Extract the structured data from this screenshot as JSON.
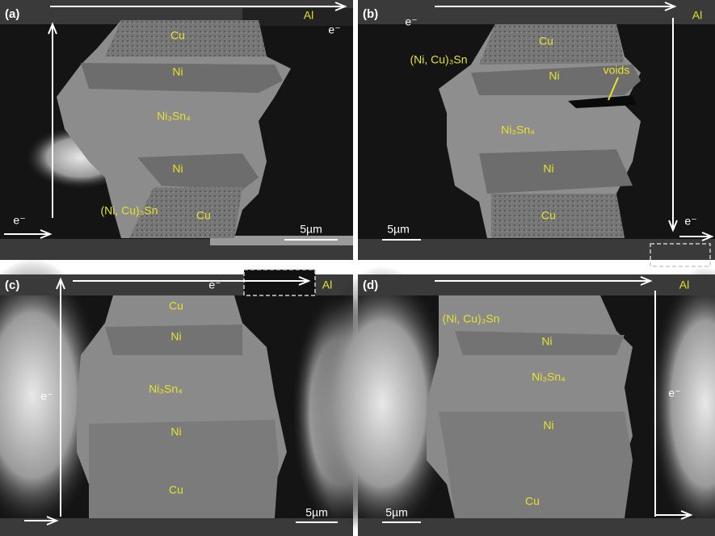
{
  "panels": [
    {
      "label": "(a)",
      "texts": [
        "Al",
        "e⁻",
        "Cu",
        "Ni",
        "Ni₃Sn₄",
        "Ni",
        "(Ni, Cu)₃Sn",
        "Cu",
        "e⁻",
        "5µm"
      ]
    },
    {
      "label": "(b)",
      "texts": [
        "Al",
        "e⁻",
        "Cu",
        "(Ni, Cu)₃Sn",
        "Ni",
        "voids",
        "Ni₃Sn₄",
        "Ni",
        "Cu",
        "e⁻",
        "5µm"
      ]
    },
    {
      "label": "(c)",
      "texts": [
        "e⁻",
        "Al",
        "Cu",
        "Ni",
        "Ni₃Sn₄",
        "e⁻",
        "Ni",
        "Cu",
        "5µm"
      ]
    },
    {
      "label": "(d)",
      "texts": [
        "Al",
        "(Ni, Cu)₃Sn",
        "Ni",
        "Ni₃Sn₄",
        "e⁻",
        "Ni",
        "Cu",
        "5µm"
      ]
    }
  ]
}
